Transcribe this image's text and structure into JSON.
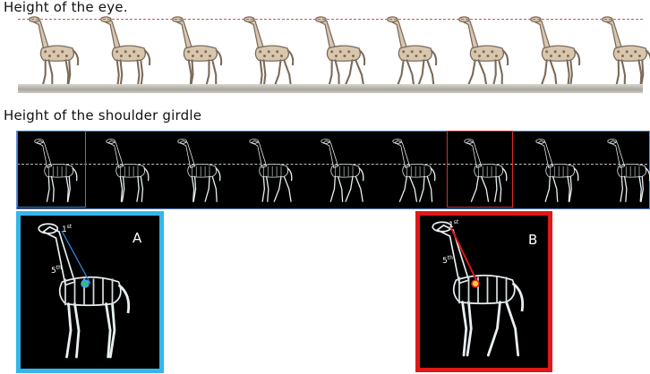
{
  "figure": {
    "eye_height_title": "Height of the eye.",
    "shoulder_girdle_title": "Height of the shoulder girdle",
    "panel_a": {
      "label": "A",
      "vertebra_top_num": "1",
      "vertebra_top_sup": "st",
      "vertebra_mid_num": "5",
      "vertebra_mid_sup": "th",
      "line_color": "#2f8ae0",
      "frame_color": "#35b6ea"
    },
    "panel_b": {
      "label": "B",
      "vertebra_top_num": "1",
      "vertebra_top_sup": "st",
      "vertebra_mid_num": "5",
      "vertebra_mid_sup": "th",
      "line_color": "#e01818",
      "frame_color": "#e01818"
    },
    "eye_line_color": "#e05050",
    "shoulder_line_color": "#bfbfbf"
  }
}
